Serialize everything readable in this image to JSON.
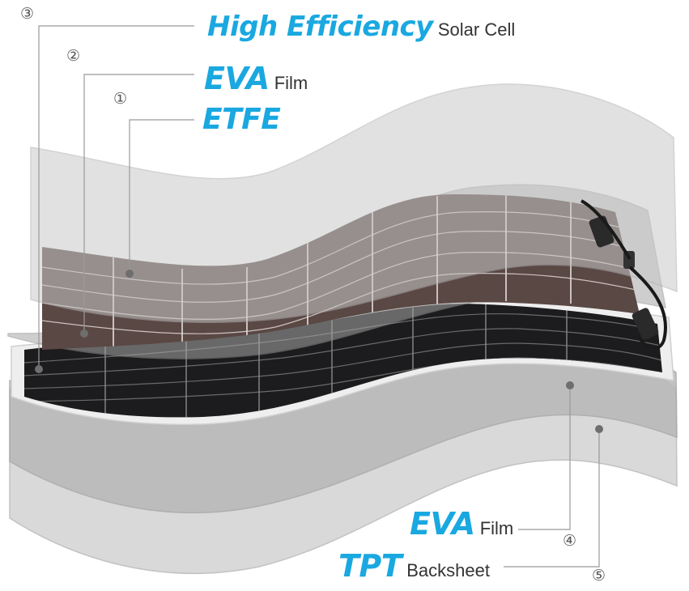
{
  "layers": [
    {
      "number": "①",
      "strong": "ETFE",
      "weak": ""
    },
    {
      "number": "②",
      "strong": "EVA",
      "weak": "Film"
    },
    {
      "number": "③",
      "strong": "High Efficiency",
      "weak": "Solar Cell"
    },
    {
      "number": "④",
      "strong": "EVA",
      "weak": "Film"
    },
    {
      "number": "⑤",
      "strong": "TPT",
      "weak": "Backsheet"
    }
  ],
  "colors": {
    "accent": "#1aa8e0",
    "layer_gray": "#c9c9c9",
    "cell_dark": "#1c1c1e",
    "cell_brown": "#5a4845"
  },
  "icons": [
    "junction-box-icon",
    "cable-connector-icon"
  ]
}
